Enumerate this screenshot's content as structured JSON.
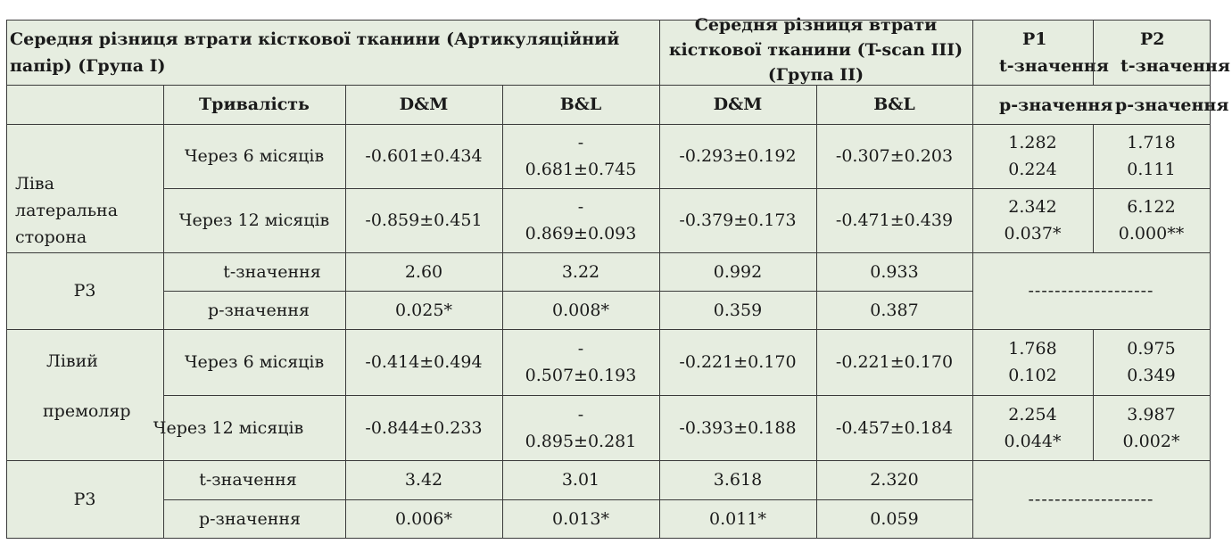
{
  "header": {
    "group1_title_line1": "Середня різниця втрати кісткової тканини (Артикуляційний",
    "group1_title_line2": "папір) (Група I)",
    "group2_title_line1": "Середня різниця втрати",
    "group2_title_line2": "кісткової тканини (T-scan III)",
    "group2_title_line3": "(Група II)",
    "p1_label": "P1",
    "p1_sub": "t-значення",
    "p2_label": "P2",
    "p2_sub": "t-значення"
  },
  "subheader": {
    "duration": "Тривалість",
    "dm1": "D&M",
    "bl1": "B&L",
    "dm2": "D&M",
    "bl2": "B&L",
    "p1_sub": "p-значення",
    "p2_sub": "p-значення"
  },
  "section1": {
    "label_line1": "Ліва",
    "label_line2": "латеральна",
    "label_line3": "сторона",
    "rows": [
      {
        "duration": "Через 6 місяців",
        "dm1": "-0.601±0.434",
        "bl1_top": "-",
        "bl1_bottom": "0.681±0.745",
        "dm2": "-0.293±0.192",
        "bl2": "-0.307±0.203",
        "p1_t": "1.282",
        "p1_p": "0.224",
        "p2_t": "1.718",
        "p2_p": "0.111"
      },
      {
        "duration": "Через 12 місяців",
        "dm1": "-0.859±0.451",
        "bl1_top": "-",
        "bl1_bottom": "0.869±0.093",
        "dm2": "-0.379±0.173",
        "bl2": "-0.471±0.439",
        "p1_t": "2.342",
        "p1_p": "0.037*",
        "p2_t": "6.122",
        "p2_p": "0.000**"
      }
    ],
    "p3": {
      "label": "P3",
      "t_label": "t-значення",
      "p_label": "p-значення",
      "t": [
        "2.60",
        "3.22",
        "0.992",
        "0.933"
      ],
      "p": [
        "0.025*",
        "0.008*",
        "0.359",
        "0.387"
      ],
      "dash": "-------------------"
    }
  },
  "section2": {
    "label_line1": "Лівий",
    "label_line2": "премоляр",
    "rows": [
      {
        "duration": "Через 6 місяців",
        "dm1": "-0.414±0.494",
        "bl1_top": "-",
        "bl1_bottom": "0.507±0.193",
        "dm2": "-0.221±0.170",
        "bl2": "-0.221±0.170",
        "p1_t": "1.768",
        "p1_p": "0.102",
        "p2_t": "0.975",
        "p2_p": "0.349"
      },
      {
        "duration": "Через 12 місяців",
        "dm1": "-0.844±0.233",
        "bl1_top": "-",
        "bl1_bottom": "0.895±0.281",
        "dm2": "-0.393±0.188",
        "bl2": "-0.457±0.184",
        "p1_t": "2.254",
        "p1_p": "0.044*",
        "p2_t": "3.987",
        "p2_p": "0.002*"
      }
    ],
    "p3": {
      "label": "P3",
      "t_label": "t-значення",
      "p_label": "p-значення",
      "t": [
        "3.42",
        "3.01",
        "3.618",
        "2.320"
      ],
      "p": [
        "0.006*",
        "0.013*",
        "0.011*",
        "0.059"
      ],
      "dash": "-------------------"
    }
  }
}
